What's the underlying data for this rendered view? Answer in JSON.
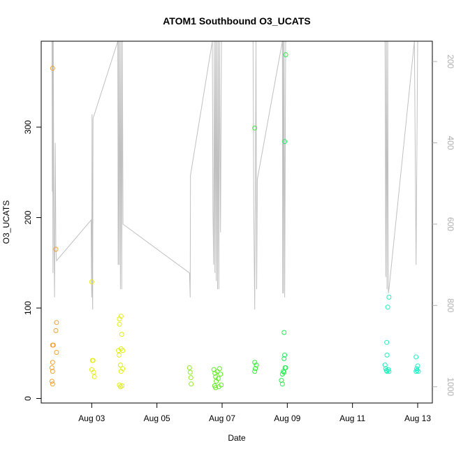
{
  "chart_data": {
    "type": "scatter",
    "title": "ATOM1 Southbound O3_UCATS",
    "xlabel": "Date",
    "ylabel": "O3_UCATS",
    "x_ticks": [
      {
        "label": "Aug 03",
        "day": 3
      },
      {
        "label": "Aug 05",
        "day": 5
      },
      {
        "label": "Aug 07",
        "day": 7
      },
      {
        "label": "Aug 09",
        "day": 9
      },
      {
        "label": "Aug 11",
        "day": 11
      },
      {
        "label": "Aug 13",
        "day": 13
      }
    ],
    "xlim": [
      1.45,
      13.45
    ],
    "ylim": [
      -5,
      395
    ],
    "y_ticks": [
      0,
      100,
      200,
      300
    ],
    "right_axis": {
      "ticks": [
        200,
        400,
        600,
        800,
        1000
      ],
      "lim": [
        1040,
        150
      ],
      "color": "#b0b0b0"
    },
    "points": [
      {
        "x": 1.8,
        "y": 365,
        "c": "#f0a030"
      },
      {
        "x": 1.8,
        "y": 59,
        "c": "#f0a030"
      },
      {
        "x": 1.82,
        "y": 59,
        "c": "#f0a030"
      },
      {
        "x": 1.78,
        "y": 34,
        "c": "#f0a030"
      },
      {
        "x": 1.8,
        "y": 40,
        "c": "#f0a030"
      },
      {
        "x": 1.8,
        "y": 30,
        "c": "#f0a030"
      },
      {
        "x": 1.78,
        "y": 19,
        "c": "#f0a030"
      },
      {
        "x": 1.8,
        "y": 16,
        "c": "#f0a030"
      },
      {
        "x": 1.9,
        "y": 165,
        "c": "#f0a030"
      },
      {
        "x": 1.92,
        "y": 84,
        "c": "#f0a030"
      },
      {
        "x": 1.9,
        "y": 75,
        "c": "#f0a030"
      },
      {
        "x": 1.92,
        "y": 51,
        "c": "#f0a030"
      },
      {
        "x": 3.0,
        "y": 129,
        "c": "#e8ec10"
      },
      {
        "x": 3.02,
        "y": 42,
        "c": "#e8ec10"
      },
      {
        "x": 3.04,
        "y": 42,
        "c": "#e8ec10"
      },
      {
        "x": 3.0,
        "y": 32,
        "c": "#e8ec10"
      },
      {
        "x": 3.06,
        "y": 29,
        "c": "#e8ec10"
      },
      {
        "x": 3.08,
        "y": 24,
        "c": "#e8ec10"
      },
      {
        "x": 3.85,
        "y": 88,
        "c": "#e0ee10"
      },
      {
        "x": 3.9,
        "y": 91,
        "c": "#e0ee10"
      },
      {
        "x": 3.85,
        "y": 82,
        "c": "#e0ee10"
      },
      {
        "x": 3.92,
        "y": 71,
        "c": "#e0ee10"
      },
      {
        "x": 3.82,
        "y": 53,
        "c": "#e0ee10"
      },
      {
        "x": 3.84,
        "y": 48,
        "c": "#e0ee10"
      },
      {
        "x": 3.9,
        "y": 55,
        "c": "#e0ee10"
      },
      {
        "x": 3.95,
        "y": 53,
        "c": "#e0ee10"
      },
      {
        "x": 3.88,
        "y": 37,
        "c": "#e0ee10"
      },
      {
        "x": 3.95,
        "y": 33,
        "c": "#e0ee10"
      },
      {
        "x": 3.9,
        "y": 30,
        "c": "#e0ee10"
      },
      {
        "x": 3.85,
        "y": 15,
        "c": "#e0ee10"
      },
      {
        "x": 3.88,
        "y": 13,
        "c": "#e0ee10"
      },
      {
        "x": 3.93,
        "y": 14,
        "c": "#e0ee10"
      },
      {
        "x": 6.0,
        "y": 34,
        "c": "#90ec20"
      },
      {
        "x": 6.02,
        "y": 29,
        "c": "#90ec20"
      },
      {
        "x": 6.04,
        "y": 23,
        "c": "#90ec20"
      },
      {
        "x": 6.05,
        "y": 16,
        "c": "#90ec20"
      },
      {
        "x": 6.75,
        "y": 32,
        "c": "#60ec20"
      },
      {
        "x": 6.78,
        "y": 28,
        "c": "#60ec20"
      },
      {
        "x": 6.8,
        "y": 24,
        "c": "#60ec20"
      },
      {
        "x": 6.82,
        "y": 19,
        "c": "#60ec20"
      },
      {
        "x": 6.77,
        "y": 14,
        "c": "#60ec20"
      },
      {
        "x": 6.85,
        "y": 30,
        "c": "#60ec20"
      },
      {
        "x": 6.88,
        "y": 22,
        "c": "#60ec20"
      },
      {
        "x": 6.9,
        "y": 13,
        "c": "#60ec20"
      },
      {
        "x": 6.92,
        "y": 33,
        "c": "#60ec20"
      },
      {
        "x": 6.95,
        "y": 27,
        "c": "#60ec20"
      },
      {
        "x": 6.97,
        "y": 15,
        "c": "#60ec20"
      },
      {
        "x": 6.8,
        "y": 12,
        "c": "#60ec20"
      },
      {
        "x": 8.0,
        "y": 299,
        "c": "#30ee30"
      },
      {
        "x": 8.0,
        "y": 40,
        "c": "#30ee30"
      },
      {
        "x": 8.05,
        "y": 37,
        "c": "#30ee30"
      },
      {
        "x": 8.02,
        "y": 33,
        "c": "#30ee30"
      },
      {
        "x": 8.0,
        "y": 30,
        "c": "#30ee30"
      },
      {
        "x": 8.95,
        "y": 380,
        "c": "#20ee50"
      },
      {
        "x": 8.92,
        "y": 284,
        "c": "#20ee50"
      },
      {
        "x": 8.9,
        "y": 73,
        "c": "#20ee50"
      },
      {
        "x": 8.92,
        "y": 48,
        "c": "#20ee50"
      },
      {
        "x": 8.9,
        "y": 44,
        "c": "#20ee50"
      },
      {
        "x": 8.93,
        "y": 34,
        "c": "#20ee50"
      },
      {
        "x": 8.95,
        "y": 34,
        "c": "#20ee50"
      },
      {
        "x": 8.85,
        "y": 27,
        "c": "#20ee50"
      },
      {
        "x": 8.88,
        "y": 30,
        "c": "#20ee50"
      },
      {
        "x": 8.9,
        "y": 29,
        "c": "#20ee50"
      },
      {
        "x": 8.82,
        "y": 20,
        "c": "#20ee50"
      },
      {
        "x": 8.85,
        "y": 16,
        "c": "#20ee50"
      },
      {
        "x": 12.12,
        "y": 112,
        "c": "#20eebc"
      },
      {
        "x": 12.08,
        "y": 101,
        "c": "#20eebc"
      },
      {
        "x": 12.05,
        "y": 62,
        "c": "#20eebc"
      },
      {
        "x": 12.06,
        "y": 48,
        "c": "#20eebc"
      },
      {
        "x": 12.0,
        "y": 37,
        "c": "#20eebc"
      },
      {
        "x": 12.02,
        "y": 33,
        "c": "#20eebc"
      },
      {
        "x": 12.04,
        "y": 31,
        "c": "#20eebc"
      },
      {
        "x": 12.06,
        "y": 30,
        "c": "#20eebc"
      },
      {
        "x": 12.1,
        "y": 32,
        "c": "#20eebc"
      },
      {
        "x": 12.12,
        "y": 30,
        "c": "#20eebc"
      },
      {
        "x": 12.95,
        "y": 46,
        "c": "#20eec8"
      },
      {
        "x": 13.0,
        "y": 36,
        "c": "#20eec8"
      },
      {
        "x": 12.97,
        "y": 33,
        "c": "#20eec8"
      },
      {
        "x": 12.98,
        "y": 31,
        "c": "#20eec8"
      },
      {
        "x": 13.02,
        "y": 30,
        "c": "#20eec8"
      },
      {
        "x": 12.95,
        "y": 30,
        "c": "#20eec8"
      }
    ],
    "pressure_trace": {
      "color": "#c0c0c0",
      "points": [
        [
          1.78,
          150
        ],
        [
          1.79,
          520
        ],
        [
          1.8,
          150
        ],
        [
          1.81,
          720
        ],
        [
          1.82,
          150
        ],
        [
          1.84,
          640
        ],
        [
          1.86,
          780
        ],
        [
          1.88,
          400
        ],
        [
          1.9,
          660
        ],
        [
          1.92,
          690
        ],
        [
          2.98,
          590
        ],
        [
          3.0,
          780
        ],
        [
          3.01,
          330
        ],
        [
          3.02,
          760
        ],
        [
          3.03,
          810
        ],
        [
          3.04,
          340
        ],
        [
          3.8,
          150
        ],
        [
          3.81,
          700
        ],
        [
          3.82,
          150
        ],
        [
          3.84,
          700
        ],
        [
          3.86,
          150
        ],
        [
          3.88,
          760
        ],
        [
          3.9,
          150
        ],
        [
          3.92,
          760
        ],
        [
          3.94,
          150
        ],
        [
          3.96,
          600
        ],
        [
          6.0,
          720
        ],
        [
          6.02,
          780
        ],
        [
          6.03,
          480
        ],
        [
          6.7,
          150
        ],
        [
          6.72,
          570
        ],
        [
          6.74,
          700
        ],
        [
          6.76,
          150
        ],
        [
          6.78,
          720
        ],
        [
          6.8,
          150
        ],
        [
          6.82,
          740
        ],
        [
          6.84,
          150
        ],
        [
          6.86,
          760
        ],
        [
          6.88,
          150
        ],
        [
          6.9,
          760
        ],
        [
          6.92,
          150
        ],
        [
          6.95,
          620
        ],
        [
          6.98,
          150
        ],
        [
          7.95,
          150
        ],
        [
          7.97,
          560
        ],
        [
          8.0,
          810
        ],
        [
          8.02,
          500
        ],
        [
          8.04,
          150
        ],
        [
          8.06,
          760
        ],
        [
          8.08,
          490
        ],
        [
          8.85,
          150
        ],
        [
          8.86,
          770
        ],
        [
          8.87,
          150
        ],
        [
          8.88,
          770
        ],
        [
          8.9,
          150
        ],
        [
          8.92,
          780
        ],
        [
          8.95,
          150
        ],
        [
          12.0,
          150
        ],
        [
          12.02,
          730
        ],
        [
          12.04,
          150
        ],
        [
          12.06,
          760
        ],
        [
          12.08,
          150
        ],
        [
          12.1,
          770
        ],
        [
          12.12,
          760
        ],
        [
          12.9,
          150
        ],
        [
          12.95,
          700
        ],
        [
          13.0,
          150
        ]
      ]
    }
  }
}
